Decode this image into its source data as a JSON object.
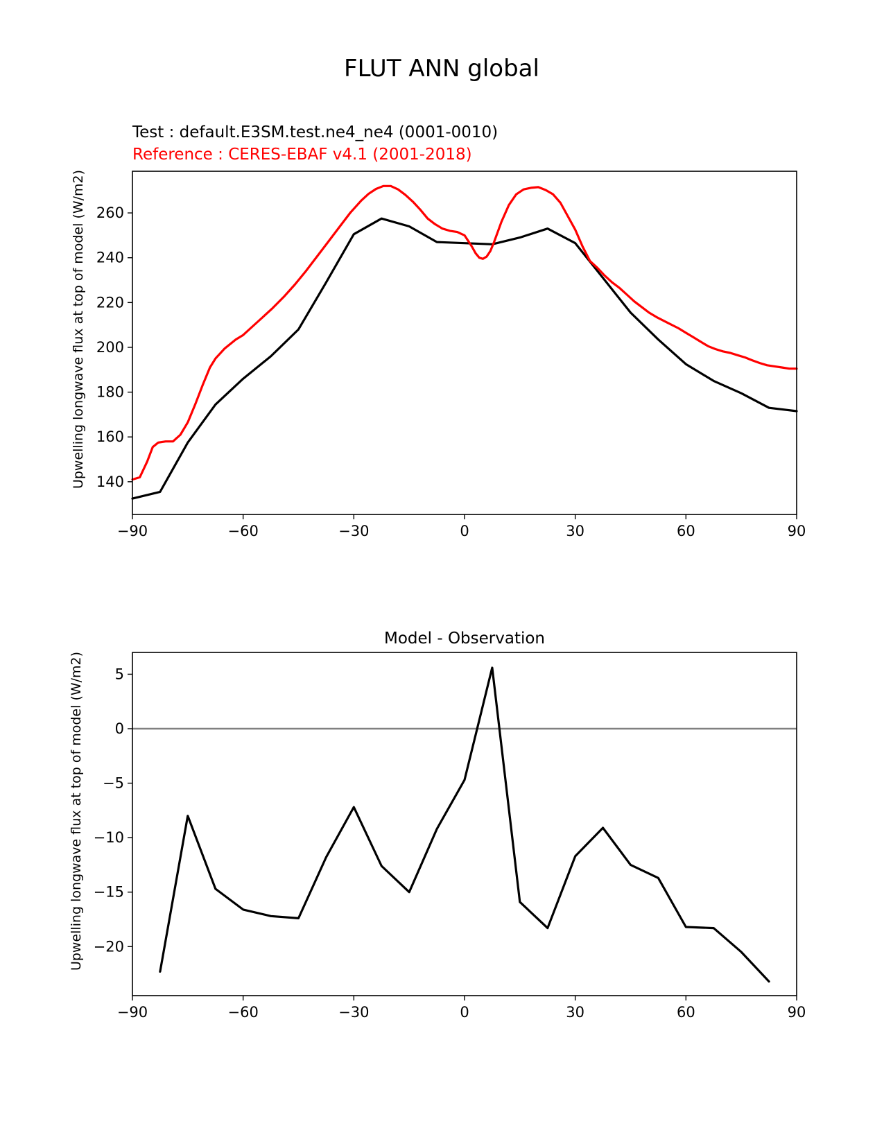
{
  "figure": {
    "title": "FLUT ANN global"
  },
  "colors": {
    "test": "#000000",
    "reference": "#ff0000",
    "zero_line": "#808080"
  },
  "chart_data": [
    {
      "type": "line",
      "test_label": "Test : default.E3SM.test.ne4_ne4 (0001-0010)",
      "reference_label": "Reference : CERES-EBAF v4.1 (2001-2018)",
      "ylabel": "Upwelling longwave flux at top of model (W/m2)",
      "xlim": [
        -90,
        90
      ],
      "ylim": [
        125.4,
        278.6
      ],
      "xticks": [
        -90,
        -60,
        -30,
        0,
        30,
        60,
        90
      ],
      "xtick_labels": [
        "−90",
        "−60",
        "−30",
        "0",
        "30",
        "60",
        "90"
      ],
      "yticks": [
        140,
        160,
        180,
        200,
        220,
        240,
        260
      ],
      "ytick_labels": [
        "140",
        "160",
        "180",
        "200",
        "220",
        "240",
        "260"
      ],
      "series": [
        {
          "color": "#000000",
          "x": [
            -90,
            -82.5,
            -75,
            -67.5,
            -60,
            -52.5,
            -45,
            -37.5,
            -30,
            -22.5,
            -15,
            -7.5,
            0,
            7.5,
            15,
            22.5,
            30,
            37.5,
            45,
            52.5,
            60,
            67.5,
            75,
            82.5,
            90
          ],
          "y": [
            132.5,
            135.5,
            157.5,
            174.5,
            186,
            196,
            208,
            229,
            250.5,
            257.5,
            254,
            247,
            246.5,
            246,
            249,
            253,
            246.5,
            231,
            215.5,
            203.5,
            192.5,
            185,
            179.5,
            173,
            171.5
          ]
        },
        {
          "color": "#ff0000",
          "x": [
            -90,
            -88,
            -86,
            -84.5,
            -83,
            -81,
            -79,
            -77,
            -75,
            -73,
            -71,
            -69,
            -67.5,
            -65,
            -62,
            -60,
            -58,
            -55,
            -52,
            -49,
            -46,
            -43,
            -40,
            -37,
            -34,
            -31,
            -28,
            -26,
            -24,
            -22,
            -20,
            -18,
            -16,
            -14,
            -12,
            -10,
            -8,
            -6,
            -4,
            -2,
            0,
            1,
            2,
            3,
            4,
            5,
            6,
            7,
            8,
            9,
            10,
            12,
            14,
            16,
            18,
            20,
            22,
            24,
            26,
            28,
            30,
            32,
            34,
            36,
            38,
            40,
            42,
            44,
            46,
            48,
            50,
            52,
            55,
            58,
            60,
            62,
            64,
            66,
            68,
            70,
            72,
            74,
            76,
            78,
            80,
            82,
            84,
            86,
            88,
            90
          ],
          "y": [
            141,
            142,
            149,
            155.5,
            157.5,
            158,
            158,
            161,
            166.5,
            174.5,
            183,
            191,
            195,
            199.5,
            203.5,
            205.5,
            208.5,
            213,
            217.5,
            222.5,
            228,
            234,
            240.5,
            247,
            253.5,
            260,
            265.5,
            268.5,
            270.7,
            272,
            272,
            270.5,
            268,
            265,
            261.5,
            257.5,
            255,
            253,
            252,
            251.5,
            250,
            247.5,
            245,
            242,
            240,
            239.5,
            240.5,
            243,
            247,
            251.5,
            256,
            263.5,
            268.3,
            270.5,
            271.2,
            271.5,
            270.2,
            268.3,
            264.5,
            258.5,
            252.5,
            245,
            238.5,
            235.5,
            232,
            229,
            226.5,
            223.5,
            220.5,
            218,
            215.5,
            213.5,
            211,
            208.5,
            206.5,
            204.5,
            202.5,
            200.5,
            199.2,
            198.2,
            197.5,
            196.5,
            195.5,
            194.2,
            193,
            192,
            191.5,
            191,
            190.5,
            190.5
          ]
        }
      ]
    },
    {
      "type": "line",
      "title": "Model - Observation",
      "ylabel": "Upwelling longwave flux at top of model (W/m2)",
      "xlim": [
        -90,
        90
      ],
      "ylim": [
        -24.5,
        7
      ],
      "xticks": [
        -90,
        -60,
        -30,
        0,
        30,
        60,
        90
      ],
      "xtick_labels": [
        "−90",
        "−60",
        "−30",
        "0",
        "30",
        "60",
        "90"
      ],
      "yticks": [
        -20,
        -15,
        -10,
        -5,
        0,
        5
      ],
      "ytick_labels": [
        "−20",
        "−15",
        "−10",
        "−5",
        "0",
        "5"
      ],
      "zero_line": 0,
      "series": [
        {
          "color": "#000000",
          "x": [
            -82.5,
            -75,
            -67.5,
            -60,
            -52.5,
            -45,
            -37.5,
            -30,
            -22.5,
            -15,
            -7.5,
            0,
            7.5,
            15,
            22.5,
            30,
            37.5,
            45,
            52.5,
            60,
            67.5,
            75,
            82.5
          ],
          "y": [
            -22.3,
            -8,
            -14.7,
            -16.6,
            -17.2,
            -17.4,
            -11.8,
            -7.2,
            -12.6,
            -15,
            -9.2,
            -4.7,
            5.6,
            -15.9,
            -18.3,
            -11.7,
            -9.1,
            -12.5,
            -13.7,
            -18.2,
            -18.3,
            -20.5,
            -23.2
          ]
        }
      ]
    }
  ]
}
